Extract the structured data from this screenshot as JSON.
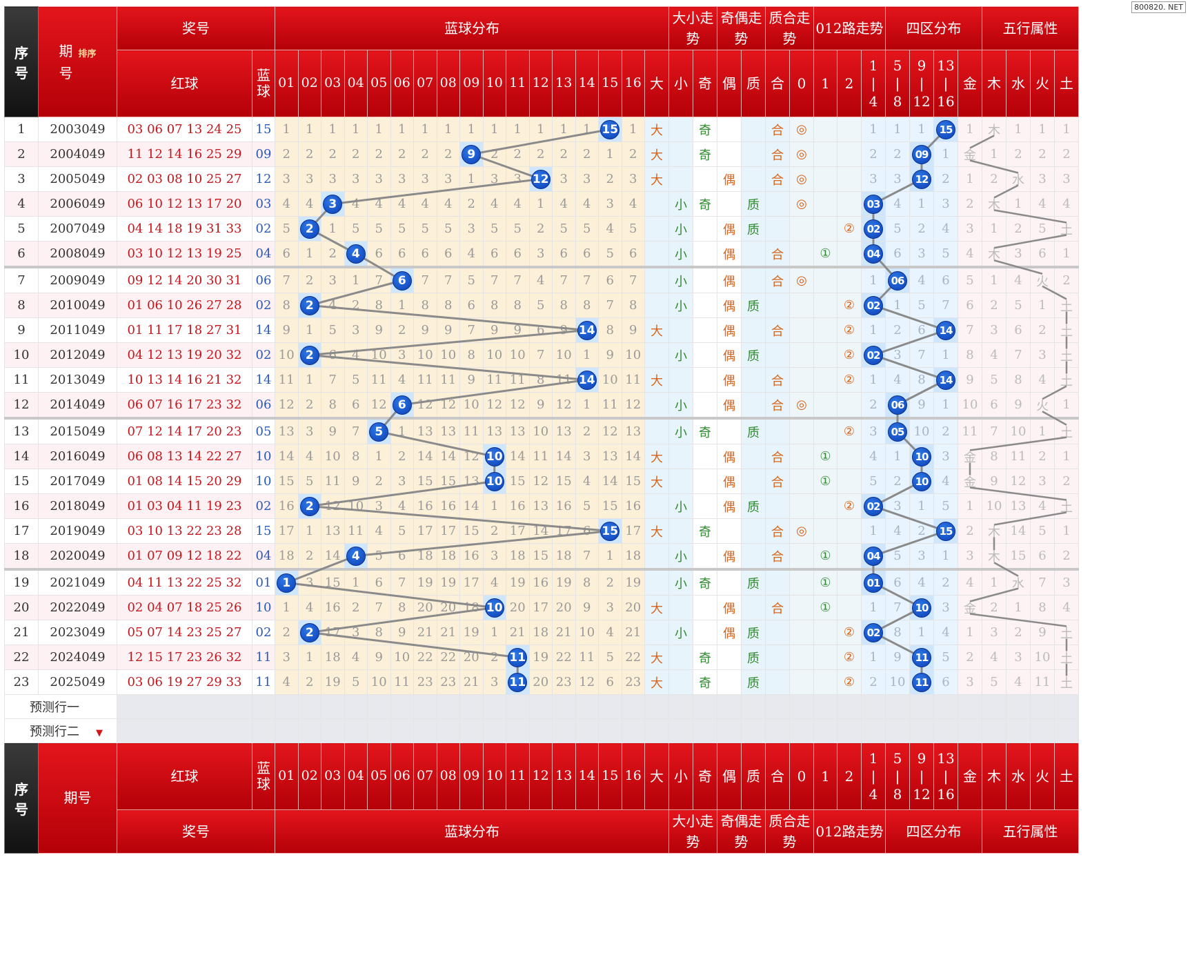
{
  "watermark": "800820. NET",
  "headers": {
    "seq": "序号",
    "period": "期号",
    "sort": "排序",
    "prize": "奖号",
    "blue_dist": "蓝球分布",
    "dx_trend": "大小走势",
    "jo_trend": "奇偶走势",
    "zh_trend": "质合走势",
    "r012_trend": "012路走势",
    "zone_dist": "四区分布",
    "wuxing": "五行属性",
    "red": "红球",
    "blue": "蓝球",
    "blue_numbers": [
      "01",
      "02",
      "03",
      "04",
      "05",
      "06",
      "07",
      "08",
      "09",
      "10",
      "11",
      "12",
      "13",
      "14",
      "15",
      "16"
    ],
    "dx": [
      "大",
      "小"
    ],
    "jo": [
      "奇",
      "偶"
    ],
    "zh": [
      "质",
      "合"
    ],
    "r012": [
      "0",
      "1",
      "2"
    ],
    "zones": [
      [
        "1",
        "|",
        "4"
      ],
      [
        "5",
        "|",
        "8"
      ],
      [
        "9",
        "|",
        "12"
      ],
      [
        "13",
        "|",
        "16"
      ]
    ],
    "wx": [
      "金",
      "木",
      "水",
      "火",
      "土"
    ]
  },
  "predictions": [
    "预测行一",
    "预测行二"
  ],
  "chart_data": {
    "type": "table",
    "rows": [
      {
        "seq": "1",
        "period": "2003049",
        "red": "03 06 07 13 24 25",
        "blue": "15",
        "miss": [
          1,
          1,
          1,
          1,
          1,
          1,
          1,
          1,
          1,
          1,
          1,
          1,
          1,
          1,
          0,
          1
        ],
        "dx": "大",
        "jo": "奇",
        "zh": "合",
        "r012": "◎",
        "zone_miss": [
          1,
          1,
          1,
          0
        ],
        "zone_label": "15",
        "wx_miss": [
          1,
          0,
          1,
          1,
          1
        ],
        "wx": "木"
      },
      {
        "seq": "2",
        "period": "2004049",
        "red": "11 12 14 16 25 29",
        "blue": "09",
        "miss": [
          2,
          2,
          2,
          2,
          2,
          2,
          2,
          2,
          0,
          2,
          2,
          2,
          2,
          2,
          1,
          2
        ],
        "dx": "大",
        "jo": "奇",
        "zh": "合",
        "r012": "◎",
        "zone_miss": [
          2,
          2,
          0,
          1
        ],
        "zone_label": "09",
        "wx_miss": [
          0,
          1,
          2,
          2,
          2
        ],
        "wx": "金"
      },
      {
        "seq": "3",
        "period": "2005049",
        "red": "02 03 08 10 25 27",
        "blue": "12",
        "miss": [
          3,
          3,
          3,
          3,
          3,
          3,
          3,
          3,
          1,
          3,
          3,
          0,
          3,
          3,
          2,
          3
        ],
        "dx": "大",
        "jo": "偶",
        "zh": "合",
        "r012": "◎",
        "zone_miss": [
          3,
          3,
          0,
          2
        ],
        "zone_label": "12",
        "wx_miss": [
          1,
          2,
          0,
          3,
          3
        ],
        "wx": "水"
      },
      {
        "seq": "4",
        "period": "2006049",
        "red": "06 10 12 13 17 20",
        "blue": "03",
        "miss": [
          4,
          4,
          0,
          4,
          4,
          4,
          4,
          4,
          2,
          4,
          4,
          1,
          4,
          4,
          3,
          4
        ],
        "dx": "小",
        "jo": "奇",
        "zh": "质",
        "r012": "◎",
        "zone_miss": [
          0,
          4,
          1,
          3
        ],
        "zone_label": "03",
        "wx_miss": [
          2,
          0,
          1,
          4,
          4
        ],
        "wx": "木"
      },
      {
        "seq": "5",
        "period": "2007049",
        "red": "04 14 18 19 31 33",
        "blue": "02",
        "miss": [
          5,
          0,
          1,
          5,
          5,
          5,
          5,
          5,
          3,
          5,
          5,
          2,
          5,
          5,
          4,
          5
        ],
        "dx": "小",
        "jo": "偶",
        "zh": "质",
        "r012": "②",
        "zone_miss": [
          0,
          5,
          2,
          4
        ],
        "zone_label": "02",
        "wx_miss": [
          3,
          1,
          2,
          5,
          0
        ],
        "wx": "土"
      },
      {
        "seq": "6",
        "period": "2008049",
        "red": "03 10 12 13 19 25",
        "blue": "04",
        "miss": [
          6,
          1,
          2,
          0,
          6,
          6,
          6,
          6,
          4,
          6,
          6,
          3,
          6,
          6,
          5,
          6
        ],
        "dx": "小",
        "jo": "偶",
        "zh": "合",
        "r012": "①",
        "zone_miss": [
          0,
          6,
          3,
          5
        ],
        "zone_label": "04",
        "wx_miss": [
          4,
          0,
          3,
          6,
          1
        ],
        "wx": "木"
      },
      {
        "seq": "7",
        "period": "2009049",
        "red": "09 12 14 20 30 31",
        "blue": "06",
        "miss": [
          7,
          2,
          3,
          1,
          7,
          0,
          7,
          7,
          5,
          7,
          7,
          4,
          7,
          7,
          6,
          7
        ],
        "dx": "小",
        "jo": "偶",
        "zh": "合",
        "r012": "◎",
        "zone_miss": [
          1,
          0,
          4,
          6
        ],
        "zone_label": "06",
        "wx_miss": [
          5,
          1,
          4,
          0,
          2
        ],
        "wx": "火"
      },
      {
        "seq": "8",
        "period": "2010049",
        "red": "01 06 10 26 27 28",
        "blue": "02",
        "miss": [
          8,
          0,
          4,
          2,
          8,
          1,
          8,
          8,
          6,
          8,
          8,
          5,
          8,
          8,
          7,
          8
        ],
        "dx": "小",
        "jo": "偶",
        "zh": "质",
        "r012": "②",
        "zone_miss": [
          0,
          1,
          5,
          7
        ],
        "zone_label": "02",
        "wx_miss": [
          6,
          2,
          5,
          1,
          0
        ],
        "wx": "土"
      },
      {
        "seq": "9",
        "period": "2011049",
        "red": "01 11 17 18 27 31",
        "blue": "14",
        "miss": [
          9,
          1,
          5,
          3,
          9,
          2,
          9,
          9,
          7,
          9,
          9,
          6,
          9,
          0,
          8,
          9
        ],
        "dx": "大",
        "jo": "偶",
        "zh": "合",
        "r012": "②",
        "zone_miss": [
          1,
          2,
          6,
          0
        ],
        "zone_label": "14",
        "wx_miss": [
          7,
          3,
          6,
          2,
          0
        ],
        "wx": "土"
      },
      {
        "seq": "10",
        "period": "2012049",
        "red": "04 12 13 19 20 32",
        "blue": "02",
        "miss": [
          10,
          0,
          6,
          4,
          10,
          3,
          10,
          10,
          8,
          10,
          10,
          7,
          10,
          1,
          9,
          10
        ],
        "dx": "小",
        "jo": "偶",
        "zh": "质",
        "r012": "②",
        "zone_miss": [
          0,
          3,
          7,
          1
        ],
        "zone_label": "02",
        "wx_miss": [
          8,
          4,
          7,
          3,
          0
        ],
        "wx": "土"
      },
      {
        "seq": "11",
        "period": "2013049",
        "red": "10 13 14 16 21 32",
        "blue": "14",
        "miss": [
          11,
          1,
          7,
          5,
          11,
          4,
          11,
          11,
          9,
          11,
          11,
          8,
          11,
          0,
          10,
          11
        ],
        "dx": "大",
        "jo": "偶",
        "zh": "合",
        "r012": "②",
        "zone_miss": [
          1,
          4,
          8,
          0
        ],
        "zone_label": "14",
        "wx_miss": [
          9,
          5,
          8,
          4,
          0
        ],
        "wx": "土"
      },
      {
        "seq": "12",
        "period": "2014049",
        "red": "06 07 16 17 23 32",
        "blue": "06",
        "miss": [
          12,
          2,
          8,
          6,
          12,
          0,
          12,
          12,
          10,
          12,
          12,
          9,
          12,
          1,
          11,
          12
        ],
        "dx": "小",
        "jo": "偶",
        "zh": "合",
        "r012": "◎",
        "zone_miss": [
          2,
          0,
          9,
          1
        ],
        "zone_label": "06",
        "wx_miss": [
          10,
          6,
          9,
          0,
          1
        ],
        "wx": "火"
      },
      {
        "seq": "13",
        "period": "2015049",
        "red": "07 12 14 17 20 23",
        "blue": "05",
        "miss": [
          13,
          3,
          9,
          7,
          0,
          1,
          13,
          13,
          11,
          13,
          13,
          10,
          13,
          2,
          12,
          13
        ],
        "dx": "小",
        "jo": "奇",
        "zh": "质",
        "r012": "②",
        "zone_miss": [
          3,
          0,
          10,
          2
        ],
        "zone_label": "05",
        "wx_miss": [
          11,
          7,
          10,
          1,
          0
        ],
        "wx": "土"
      },
      {
        "seq": "14",
        "period": "2016049",
        "red": "06 08 13 14 22 27",
        "blue": "10",
        "miss": [
          14,
          4,
          10,
          8,
          1,
          2,
          14,
          14,
          12,
          0,
          14,
          11,
          14,
          3,
          13,
          14
        ],
        "dx": "大",
        "jo": "偶",
        "zh": "合",
        "r012": "①",
        "zone_miss": [
          4,
          1,
          0,
          3
        ],
        "zone_label": "10",
        "wx_miss": [
          0,
          8,
          11,
          2,
          1
        ],
        "wx": "金"
      },
      {
        "seq": "15",
        "period": "2017049",
        "red": "01 08 14 15 20 29",
        "blue": "10",
        "miss": [
          15,
          5,
          11,
          9,
          2,
          3,
          15,
          15,
          13,
          0,
          15,
          12,
          15,
          4,
          14,
          15
        ],
        "dx": "大",
        "jo": "偶",
        "zh": "合",
        "r012": "①",
        "zone_miss": [
          5,
          2,
          0,
          4
        ],
        "zone_label": "10",
        "wx_miss": [
          0,
          9,
          12,
          3,
          2
        ],
        "wx": "金"
      },
      {
        "seq": "16",
        "period": "2018049",
        "red": "01 03 04 11 19 23",
        "blue": "02",
        "miss": [
          16,
          0,
          12,
          10,
          3,
          4,
          16,
          16,
          14,
          1,
          16,
          13,
          16,
          5,
          15,
          16
        ],
        "dx": "小",
        "jo": "偶",
        "zh": "质",
        "r012": "②",
        "zone_miss": [
          0,
          3,
          1,
          5
        ],
        "zone_label": "02",
        "wx_miss": [
          1,
          10,
          13,
          4,
          0
        ],
        "wx": "土"
      },
      {
        "seq": "17",
        "period": "2019049",
        "red": "03 10 13 22 23 28",
        "blue": "15",
        "miss": [
          17,
          1,
          13,
          11,
          4,
          5,
          17,
          17,
          15,
          2,
          17,
          14,
          17,
          6,
          0,
          17
        ],
        "dx": "大",
        "jo": "奇",
        "zh": "合",
        "r012": "◎",
        "zone_miss": [
          1,
          4,
          2,
          0
        ],
        "zone_label": "15",
        "wx_miss": [
          2,
          0,
          14,
          5,
          1
        ],
        "wx": "木"
      },
      {
        "seq": "18",
        "period": "2020049",
        "red": "01 07 09 12 18 22",
        "blue": "04",
        "miss": [
          18,
          2,
          14,
          0,
          5,
          6,
          18,
          18,
          16,
          3,
          18,
          15,
          18,
          7,
          1,
          18
        ],
        "dx": "小",
        "jo": "偶",
        "zh": "合",
        "r012": "①",
        "zone_miss": [
          0,
          5,
          3,
          1
        ],
        "zone_label": "04",
        "wx_miss": [
          3,
          0,
          15,
          6,
          2
        ],
        "wx": "木"
      },
      {
        "seq": "19",
        "period": "2021049",
        "red": "04 11 13 22 25 32",
        "blue": "01",
        "miss": [
          0,
          3,
          15,
          1,
          6,
          7,
          19,
          19,
          17,
          4,
          19,
          16,
          19,
          8,
          2,
          19
        ],
        "dx": "小",
        "jo": "奇",
        "zh": "质",
        "r012": "①",
        "zone_miss": [
          0,
          6,
          4,
          2
        ],
        "zone_label": "01",
        "wx_miss": [
          4,
          1,
          0,
          7,
          3
        ],
        "wx": "水"
      },
      {
        "seq": "20",
        "period": "2022049",
        "red": "02 04 07 18 25 26",
        "blue": "10",
        "miss": [
          1,
          4,
          16,
          2,
          7,
          8,
          20,
          20,
          18,
          0,
          20,
          17,
          20,
          9,
          3,
          20
        ],
        "dx": "大",
        "jo": "偶",
        "zh": "合",
        "r012": "①",
        "zone_miss": [
          1,
          7,
          0,
          3
        ],
        "zone_label": "10",
        "wx_miss": [
          0,
          2,
          1,
          8,
          4
        ],
        "wx": "金"
      },
      {
        "seq": "21",
        "period": "2023049",
        "red": "05 07 14 23 25 27",
        "blue": "02",
        "miss": [
          2,
          0,
          17,
          3,
          8,
          9,
          21,
          21,
          19,
          1,
          21,
          18,
          21,
          10,
          4,
          21
        ],
        "dx": "小",
        "jo": "偶",
        "zh": "质",
        "r012": "②",
        "zone_miss": [
          0,
          8,
          1,
          4
        ],
        "zone_label": "02",
        "wx_miss": [
          1,
          3,
          2,
          9,
          0
        ],
        "wx": "土"
      },
      {
        "seq": "22",
        "period": "2024049",
        "red": "12 15 17 23 26 32",
        "blue": "11",
        "miss": [
          3,
          1,
          18,
          4,
          9,
          10,
          22,
          22,
          20,
          2,
          0,
          19,
          22,
          11,
          5,
          22
        ],
        "dx": "大",
        "jo": "奇",
        "zh": "质",
        "r012": "②",
        "zone_miss": [
          1,
          9,
          0,
          5
        ],
        "zone_label": "11",
        "wx_miss": [
          2,
          4,
          3,
          10,
          0
        ],
        "wx": "土"
      },
      {
        "seq": "23",
        "period": "2025049",
        "red": "03 06 19 27 29 33",
        "blue": "11",
        "miss": [
          4,
          2,
          19,
          5,
          10,
          11,
          23,
          23,
          21,
          3,
          0,
          20,
          23,
          12,
          6,
          23
        ],
        "dx": "大",
        "jo": "奇",
        "zh": "质",
        "r012": "②",
        "zone_miss": [
          2,
          10,
          0,
          6
        ],
        "zone_label": "11",
        "wx_miss": [
          3,
          5,
          4,
          11,
          0
        ],
        "wx": "土"
      }
    ]
  }
}
